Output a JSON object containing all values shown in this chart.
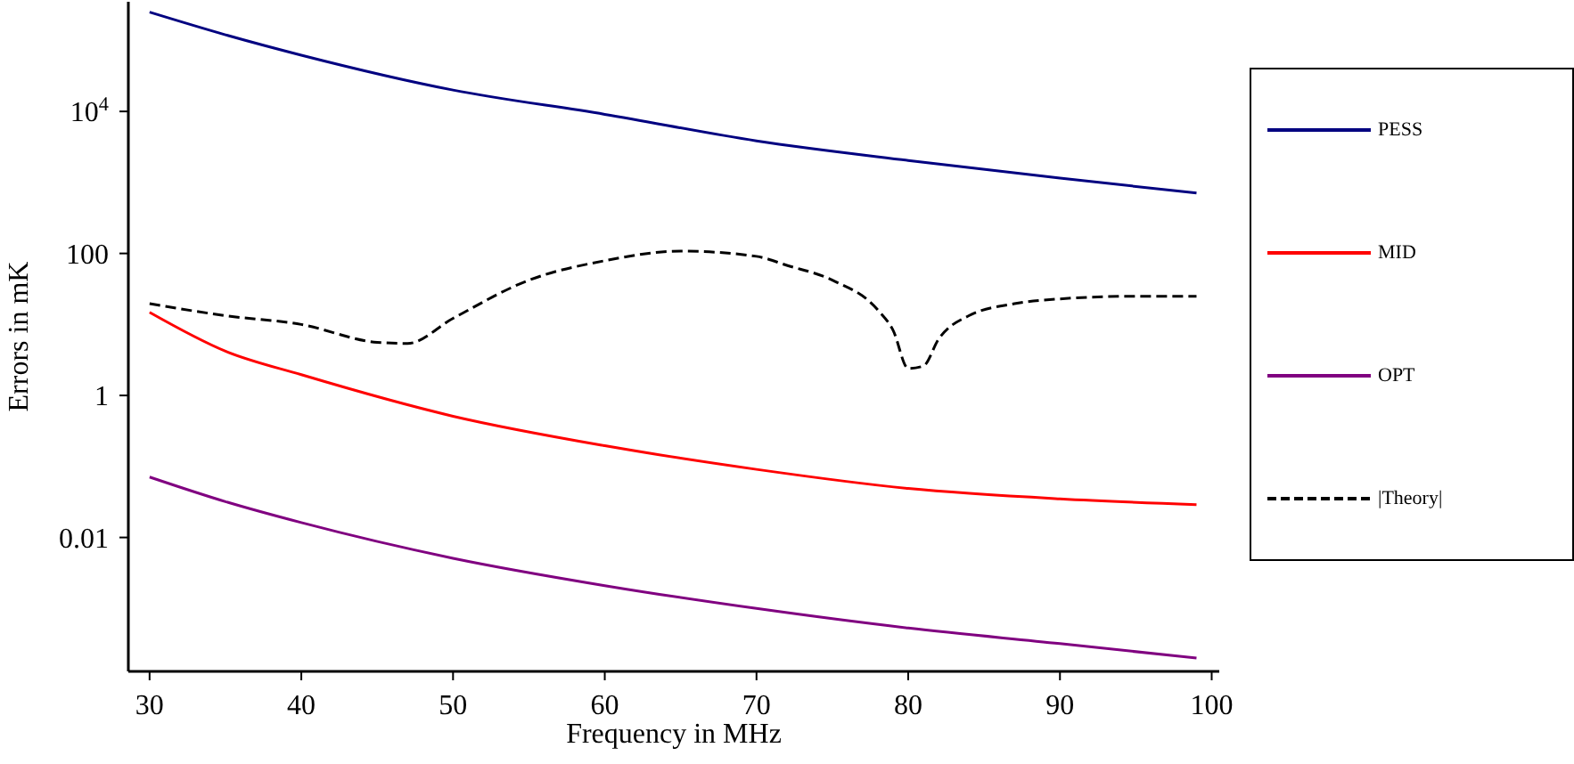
{
  "chart_data": {
    "type": "line",
    "xlabel": "Frequency in MHz",
    "ylabel": "Errors in mK",
    "log": "y",
    "xlim": [
      28.6,
      100.5
    ],
    "xticks": [
      30,
      40,
      50,
      60,
      70,
      80,
      90,
      100
    ],
    "ylim": [
      0.00013,
      350000
    ],
    "yticks": [
      0.01,
      1,
      100,
      {
        "value": 10000,
        "label": "10$^{4}$"
      }
    ],
    "legend": "right",
    "series": [
      {
        "name": "PESS",
        "color": "#000080",
        "line_style": "solid",
        "x": [
          30,
          35,
          40,
          50,
          60,
          70,
          80,
          90,
          99
        ],
        "values": [
          250000,
          120000,
          62000,
          20000,
          9100,
          3850,
          2040,
          1150,
          708
        ]
      },
      {
        "name": "MID",
        "color": "#ff0000",
        "line_style": "solid",
        "x": [
          30,
          35,
          40,
          50,
          60,
          70,
          80,
          90,
          99
        ],
        "values": [
          14.8,
          4.2,
          1.96,
          0.51,
          0.196,
          0.091,
          0.049,
          0.035,
          0.029
        ]
      },
      {
        "name": "OPT",
        "color": "#800080",
        "line_style": "solid",
        "x": [
          30,
          35,
          40,
          50,
          60,
          70,
          80,
          90,
          99
        ],
        "values": [
          0.071,
          0.032,
          0.0162,
          0.0051,
          0.0021,
          0.001,
          0.00053,
          0.00032,
          0.0002
        ]
      },
      {
        "name": "|Theory|",
        "color": "#000000",
        "line_style": "dashed",
        "x": [
          30,
          35,
          40,
          45,
          47,
          50,
          55,
          60,
          65,
          70,
          72,
          75,
          78,
          79,
          80,
          81,
          82,
          84,
          87,
          90,
          95,
          99
        ],
        "values": [
          19.6,
          13.3,
          10,
          5.6,
          5.4,
          12.2,
          42,
          79,
          108,
          91,
          68,
          42,
          16,
          8.3,
          2.4,
          2.6,
          6.2,
          13.3,
          19.6,
          22.9,
          25,
          25
        ]
      }
    ]
  }
}
